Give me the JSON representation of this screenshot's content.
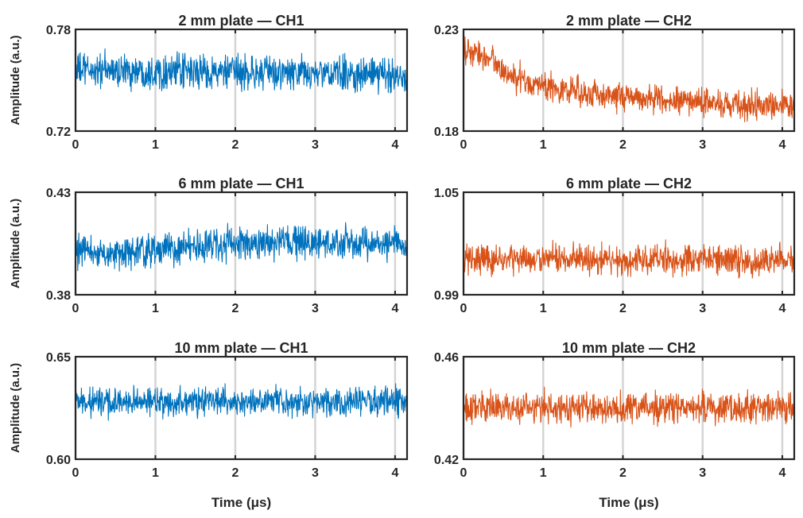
{
  "colors": {
    "ch1": "#0072BD",
    "ch2": "#D95319",
    "axis": "#262626",
    "grid": "#d4d4d4"
  },
  "chart_data": [
    {
      "type": "line",
      "title": "2 mm plate — CH1",
      "xlabel": "",
      "ylabel": "Amplitude (a.u.)",
      "xlim": [
        0,
        4.15
      ],
      "ylim": [
        0.72,
        0.78
      ],
      "xticks": [
        "0",
        "1",
        "2",
        "3",
        "4"
      ],
      "yticks": [
        "0.72",
        "0.78"
      ],
      "grid": "x",
      "trend": [
        [
          0,
          0.756
        ],
        [
          4.15,
          0.753
        ]
      ],
      "noise_amplitude": 0.011,
      "series": [
        {
          "color": "ch1"
        }
      ]
    },
    {
      "type": "line",
      "title": "2 mm plate — CH2",
      "xlabel": "",
      "ylabel": "",
      "xlim": [
        0,
        4.15
      ],
      "ylim": [
        0.18,
        0.23
      ],
      "xticks": [
        "0",
        "1",
        "2",
        "3",
        "4"
      ],
      "yticks": [
        "0.18",
        "0.23"
      ],
      "grid": "x",
      "trend": [
        [
          0,
          0.219
        ],
        [
          0.35,
          0.216
        ],
        [
          0.55,
          0.207
        ],
        [
          1.0,
          0.202
        ],
        [
          1.5,
          0.199
        ],
        [
          2.0,
          0.197
        ],
        [
          3.0,
          0.194
        ],
        [
          4.15,
          0.192
        ]
      ],
      "noise_amplitude": 0.0075,
      "series": [
        {
          "color": "ch2"
        }
      ]
    },
    {
      "type": "line",
      "title": "6 mm plate — CH1",
      "xlabel": "",
      "ylabel": "Amplitude (a.u.)",
      "xlim": [
        0,
        4.15
      ],
      "ylim": [
        0.38,
        0.43
      ],
      "xticks": [
        "0",
        "1",
        "2",
        "3",
        "4"
      ],
      "yticks": [
        "0.38",
        "0.43"
      ],
      "grid": "x",
      "trend": [
        [
          0,
          0.401
        ],
        [
          0.6,
          0.4
        ],
        [
          1.0,
          0.402
        ],
        [
          2.0,
          0.405
        ],
        [
          3.0,
          0.405
        ],
        [
          4.15,
          0.405
        ]
      ],
      "noise_amplitude": 0.0085,
      "series": [
        {
          "color": "ch1"
        }
      ]
    },
    {
      "type": "line",
      "title": "6 mm plate — CH2",
      "xlabel": "",
      "ylabel": "",
      "xlim": [
        0,
        4.15
      ],
      "ylim": [
        0.99,
        1.05
      ],
      "xticks": [
        "0",
        "1",
        "2",
        "3",
        "4"
      ],
      "yticks": [
        "0.99",
        "1.05"
      ],
      "grid": "x",
      "trend": [
        [
          0,
          1.011
        ],
        [
          4.15,
          1.01
        ]
      ],
      "noise_amplitude": 0.0095,
      "series": [
        {
          "color": "ch2"
        }
      ]
    },
    {
      "type": "line",
      "title": "10 mm plate — CH1",
      "xlabel": "Time (μs)",
      "ylabel": "Amplitude (a.u.)",
      "xlim": [
        0,
        4.15
      ],
      "ylim": [
        0.6,
        0.65
      ],
      "xticks": [
        "0",
        "1",
        "2",
        "3",
        "4"
      ],
      "yticks": [
        "0.60",
        "0.65"
      ],
      "grid": "x",
      "trend": [
        [
          0,
          0.628
        ],
        [
          4.15,
          0.628
        ]
      ],
      "noise_amplitude": 0.0075,
      "series": [
        {
          "color": "ch1"
        }
      ]
    },
    {
      "type": "line",
      "title": "10 mm plate — CH2",
      "xlabel": "Time (μs)",
      "ylabel": "",
      "xlim": [
        0,
        4.15
      ],
      "ylim": [
        0.42,
        0.46
      ],
      "xticks": [
        "0",
        "1",
        "2",
        "3",
        "4"
      ],
      "yticks": [
        "0.42",
        "0.46"
      ],
      "grid": "x",
      "trend": [
        [
          0,
          0.44
        ],
        [
          4.15,
          0.44
        ]
      ],
      "noise_amplitude": 0.0065,
      "series": [
        {
          "color": "ch2"
        }
      ]
    }
  ]
}
